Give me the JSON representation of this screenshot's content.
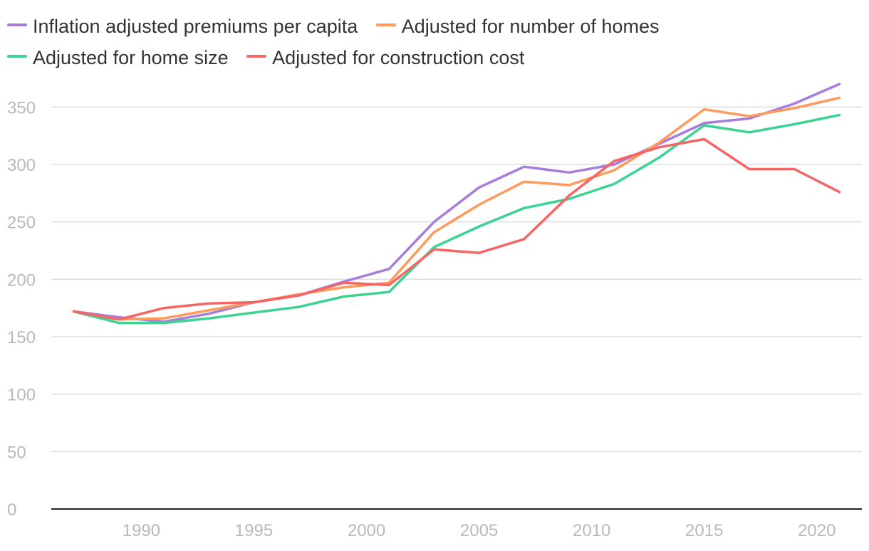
{
  "chart_data": {
    "type": "line",
    "title": "",
    "xlabel": "",
    "ylabel": "",
    "x": [
      1987,
      1989,
      1991,
      1993,
      1995,
      1997,
      1999,
      2001,
      2003,
      2005,
      2007,
      2009,
      2011,
      2013,
      2015,
      2017,
      2019,
      2021
    ],
    "xlim": [
      1986,
      2022
    ],
    "ylim": [
      0,
      375
    ],
    "yticks": [
      0,
      50,
      100,
      150,
      200,
      250,
      300,
      350
    ],
    "xticks": [
      1990,
      1995,
      2000,
      2005,
      2010,
      2015,
      2020
    ],
    "grid": true,
    "legend_position": "top",
    "series": [
      {
        "name": "Inflation adjusted premiums per capita",
        "color": "#a77ddb",
        "values": [
          172,
          167,
          163,
          170,
          180,
          186,
          198,
          209,
          250,
          280,
          298,
          293,
          300,
          318,
          336,
          340,
          353,
          370
        ]
      },
      {
        "name": "Adjusted for number of homes",
        "color": "#fd9a5c",
        "values": [
          172,
          165,
          166,
          173,
          180,
          187,
          193,
          197,
          241,
          265,
          285,
          282,
          295,
          319,
          348,
          342,
          349,
          358
        ]
      },
      {
        "name": "Adjusted for home size",
        "color": "#3ad38f",
        "values": [
          172,
          162,
          162,
          166,
          171,
          176,
          185,
          189,
          228,
          246,
          262,
          270,
          283,
          306,
          334,
          328,
          335,
          343
        ]
      },
      {
        "name": "Adjusted for construction cost",
        "color": "#f56565",
        "values": [
          172,
          165,
          175,
          179,
          180,
          186,
          197,
          195,
          226,
          223,
          235,
          273,
          303,
          315,
          322,
          296,
          296,
          276
        ]
      }
    ]
  }
}
